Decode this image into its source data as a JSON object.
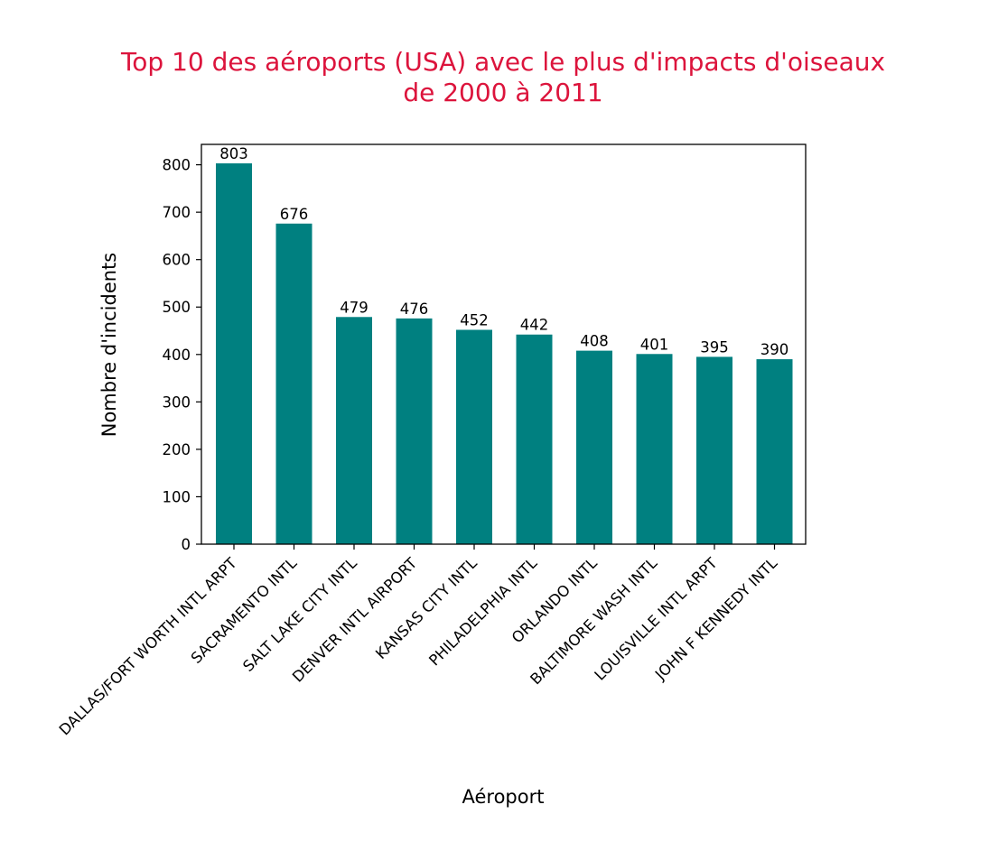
{
  "chart_data": {
    "type": "bar",
    "title_lines": [
      "Top 10 des aéroports (USA) avec le plus d'impacts d'oiseaux",
      "de 2000 à 2011"
    ],
    "xlabel": "Aéroport",
    "ylabel": "Nombre d'incidents",
    "categories": [
      "DALLAS/FORT WORTH INTL ARPT",
      "SACRAMENTO INTL",
      "SALT LAKE CITY INTL",
      "DENVER INTL AIRPORT",
      "KANSAS CITY INTL",
      "PHILADELPHIA INTL",
      "ORLANDO INTL",
      "BALTIMORE WASH INTL",
      "LOUISVILLE INTL ARPT",
      "JOHN F KENNEDY INTL"
    ],
    "values": [
      803,
      676,
      479,
      476,
      452,
      442,
      408,
      401,
      395,
      390
    ],
    "value_labels": [
      "803",
      "676",
      "479",
      "476",
      "452",
      "442",
      "408",
      "401",
      "395",
      "390"
    ],
    "yticks": [
      "0",
      "100",
      "200",
      "300",
      "400",
      "500",
      "600",
      "700",
      "800"
    ],
    "ylim": [
      0,
      843
    ],
    "bar_color": "#008080",
    "title_color": "#dc143c",
    "grid": false,
    "legend": false
  }
}
